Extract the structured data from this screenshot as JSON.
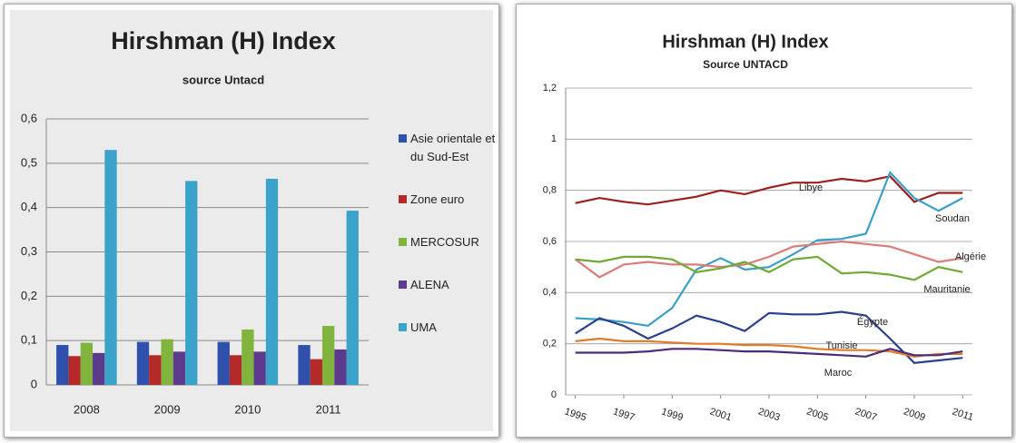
{
  "chart_data": [
    {
      "type": "bar",
      "title": "Hirshman (H) Index",
      "subtitle": "source Untacd",
      "categories": [
        "2008",
        "2009",
        "2010",
        "2011"
      ],
      "series": [
        {
          "name": "Asie orientale et du Sud-Est",
          "color": "#2f50ab",
          "values": [
            0.09,
            0.097,
            0.097,
            0.09
          ]
        },
        {
          "name": "Zone euro",
          "color": "#b42a28",
          "values": [
            0.065,
            0.067,
            0.067,
            0.058
          ]
        },
        {
          "name": "MERCOSUR",
          "color": "#80b43c",
          "values": [
            0.095,
            0.103,
            0.125,
            0.133
          ]
        },
        {
          "name": "ALENA",
          "color": "#5c3b8f",
          "values": [
            0.072,
            0.075,
            0.075,
            0.08
          ]
        },
        {
          "name": "UMA",
          "color": "#3ba2c9",
          "values": [
            0.53,
            0.46,
            0.465,
            0.393
          ]
        }
      ],
      "ylim": [
        0,
        0.6
      ],
      "yticks": [
        0,
        {
          "value": 0.1,
          "label": "0,1"
        },
        {
          "value": 0.2,
          "label": "0,2"
        },
        {
          "value": 0.3,
          "label": "0,3"
        },
        {
          "value": 0.4,
          "label": "0,4"
        },
        {
          "value": 0.5,
          "label": "0,5"
        },
        {
          "value": 0.6,
          "label": "0,6"
        }
      ],
      "grid": true,
      "legend": "right"
    },
    {
      "type": "line",
      "title": "Hirshman (H) Index",
      "subtitle": "Source UNTACD",
      "x": [
        1995,
        1996,
        1997,
        1998,
        1999,
        2000,
        2001,
        2002,
        2003,
        2004,
        2005,
        2006,
        2007,
        2008,
        2009,
        2010,
        2011
      ],
      "series": [
        {
          "name": "Libye",
          "color": "#9c1f1f",
          "values": [
            0.75,
            0.77,
            0.755,
            0.745,
            0.76,
            0.775,
            0.8,
            0.785,
            0.81,
            0.83,
            0.83,
            0.845,
            0.835,
            0.855,
            0.755,
            0.79,
            0.79
          ]
        },
        {
          "name": "Soudan",
          "color": "#3a9fc8",
          "values": [
            0.3,
            0.295,
            0.285,
            0.27,
            0.34,
            0.49,
            0.535,
            0.49,
            0.5,
            0.55,
            0.605,
            0.61,
            0.63,
            0.87,
            0.77,
            0.72,
            0.77
          ]
        },
        {
          "name": "Algérie",
          "color": "#d97c7a",
          "values": [
            0.53,
            0.46,
            0.51,
            0.52,
            0.51,
            0.51,
            0.5,
            0.51,
            0.54,
            0.58,
            0.59,
            0.6,
            0.59,
            0.58,
            0.55,
            0.52,
            0.535
          ]
        },
        {
          "name": "Mauritanie",
          "color": "#70a934",
          "values": [
            0.53,
            0.52,
            0.54,
            0.54,
            0.53,
            0.48,
            0.495,
            0.52,
            0.48,
            0.53,
            0.54,
            0.475,
            0.48,
            0.47,
            0.45,
            0.5,
            0.48
          ]
        },
        {
          "name": "Égypte",
          "color": "#2b3f90",
          "values": [
            0.24,
            0.3,
            0.27,
            0.22,
            0.26,
            0.31,
            0.285,
            0.25,
            0.32,
            0.315,
            0.315,
            0.325,
            0.31,
            0.22,
            0.125,
            0.135,
            0.145
          ]
        },
        {
          "name": "Tunisie",
          "color": "#e07b2a",
          "values": [
            0.21,
            0.22,
            0.21,
            0.21,
            0.205,
            0.2,
            0.2,
            0.195,
            0.195,
            0.19,
            0.18,
            0.175,
            0.175,
            0.17,
            0.15,
            0.16,
            0.16
          ]
        },
        {
          "name": "Maroc",
          "color": "#4a2b7c",
          "values": [
            0.165,
            0.165,
            0.165,
            0.17,
            0.18,
            0.18,
            0.175,
            0.17,
            0.17,
            0.165,
            0.16,
            0.155,
            0.15,
            0.18,
            0.155,
            0.155,
            0.17
          ]
        }
      ],
      "xlim": [
        1994.6,
        2011.4
      ],
      "xticks": [
        1995,
        1997,
        1999,
        2001,
        2003,
        2005,
        2007,
        2009,
        2011
      ],
      "ylim": [
        0,
        1.2
      ],
      "yticks": [
        0,
        {
          "value": 0.2,
          "label": "0,2"
        },
        {
          "value": 0.4,
          "label": "0,4"
        },
        {
          "value": 0.6,
          "label": "0,6"
        },
        {
          "value": 0.8,
          "label": "0,8"
        },
        1,
        {
          "value": 1.2,
          "label": "1,2"
        }
      ],
      "grid": true,
      "legend": "inline"
    }
  ]
}
